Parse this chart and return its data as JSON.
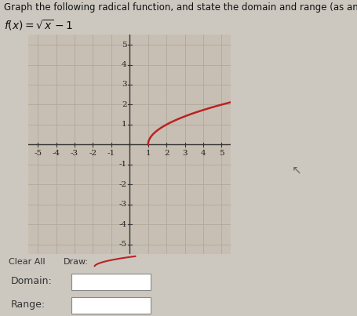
{
  "title": "Graph the following radical function, and state the domain and range (as an inequality).",
  "function_label": "f(x) = √x − 1",
  "xlim": [
    -5.5,
    5.5
  ],
  "ylim": [
    -5.5,
    5.5
  ],
  "xticks": [
    -5,
    -4,
    -3,
    -2,
    -1,
    1,
    2,
    3,
    4,
    5
  ],
  "yticks": [
    -5,
    -4,
    -3,
    -2,
    -1,
    1,
    2,
    3,
    4,
    5
  ],
  "bg_color": "#ccc8c0",
  "graph_bg_color": "#c8bfb4",
  "grid_color": "#b8b0a8",
  "axis_color": "#333333",
  "curve_color": "#bb2222",
  "domain_start": 1,
  "tick_fontsize": 7.5,
  "title_fontsize": 8.5,
  "func_fontsize": 10
}
